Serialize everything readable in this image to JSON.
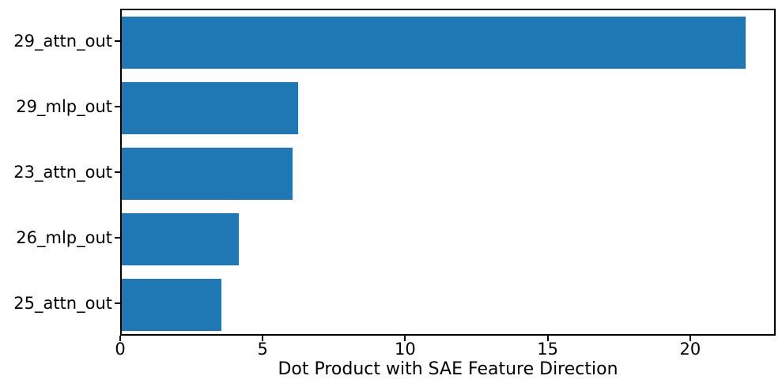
{
  "chart_data": {
    "type": "bar",
    "orientation": "horizontal",
    "title": "",
    "xlabel": "Dot Product with SAE Feature Direction",
    "ylabel": "",
    "categories": [
      "29_attn_out",
      "29_mlp_out",
      "23_attn_out",
      "26_mlp_out",
      "25_attn_out"
    ],
    "values": [
      21.9,
      6.2,
      6.0,
      4.1,
      3.5
    ],
    "xlim": [
      0,
      23
    ],
    "xticks": [
      0,
      5,
      10,
      15,
      20
    ],
    "bar_color": "#1f77b4",
    "spine_color": "#000000",
    "text_color": "#000000",
    "background_color": "#ffffff",
    "grid": "off",
    "legend": "none"
  }
}
